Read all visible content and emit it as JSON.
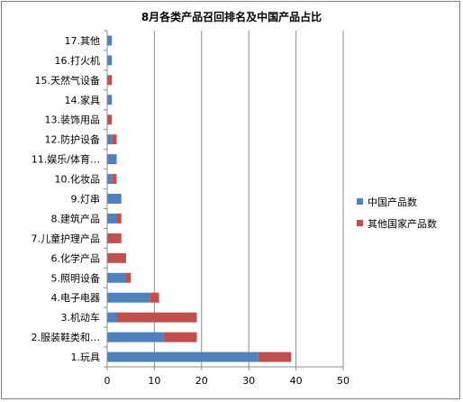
{
  "chart_data": {
    "type": "bar",
    "orientation": "horizontal",
    "stacked": true,
    "title": "8月各类产品召回排名及中国产品占比",
    "categories": [
      "1.玩具",
      "2.服装鞋类和…",
      "3.机动车",
      "4.电子电器",
      "5.照明设备",
      "6.化学产品",
      "7.儿童护理产品",
      "8.建筑产品",
      "9.灯串",
      "10.化妆品",
      "11.娱乐/体育…",
      "12.防护设备",
      "13.装饰用品",
      "14.家具",
      "15.天然气设备",
      "16.打火机",
      "17.其他"
    ],
    "series": [
      {
        "name": "中国产品数",
        "color": "#4f81bd",
        "values": [
          32,
          12,
          2,
          9,
          4,
          0,
          0,
          2,
          3,
          1,
          2,
          1,
          0,
          1,
          0,
          1,
          1
        ]
      },
      {
        "name": "其他国家产品数",
        "color": "#c0504d",
        "values": [
          7,
          7,
          17,
          2,
          1,
          4,
          3,
          1,
          0,
          1,
          0,
          1,
          1,
          0,
          1,
          0,
          0
        ]
      }
    ],
    "xlim": [
      0,
      50
    ],
    "xticks": [
      0,
      10,
      20,
      30,
      40,
      50
    ],
    "grid": "vertical",
    "legend": "right"
  }
}
